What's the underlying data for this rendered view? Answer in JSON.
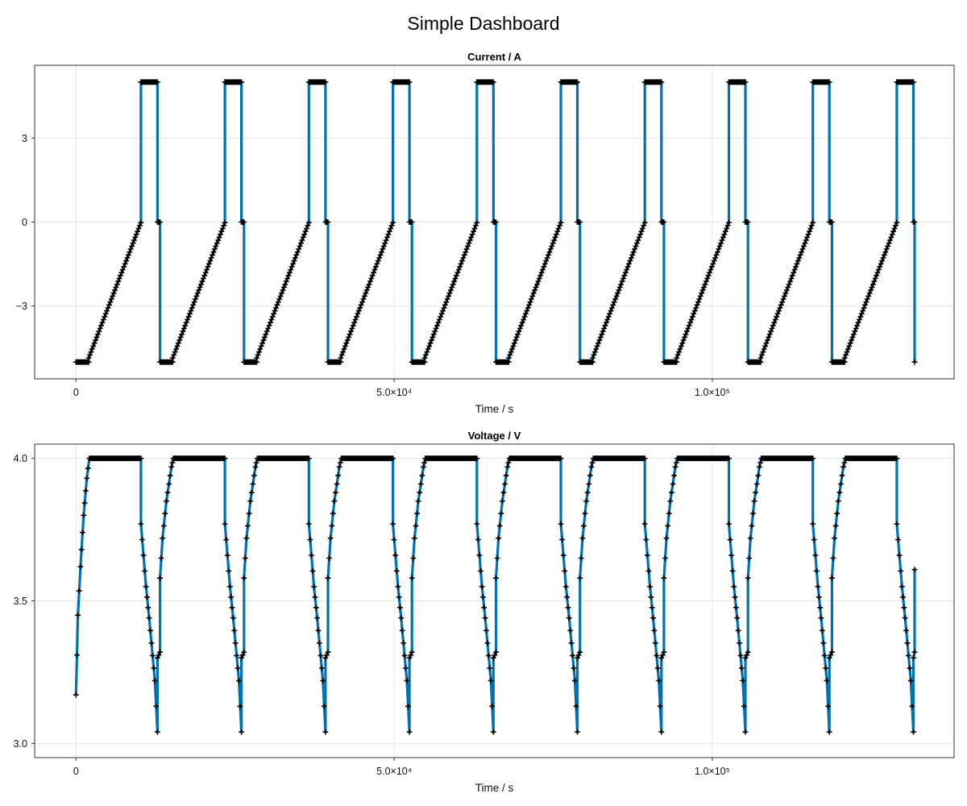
{
  "title": "Simple Dashboard",
  "colors": {
    "line": "#0072b2",
    "marker": "#000000",
    "grid": "#e6e6e6",
    "frame": "#333333"
  },
  "chart_data": [
    {
      "type": "line",
      "title": "Current  /  A",
      "xlabel": "Time  /  s",
      "ylabel": "",
      "xlim": [
        -6500,
        138000
      ],
      "ylim": [
        -5.6,
        5.6
      ],
      "xticks": [
        0,
        50000,
        100000
      ],
      "xtick_labels": [
        "0",
        "5.0×10⁴",
        "1.0×10⁵"
      ],
      "yticks": [
        -3,
        0,
        3
      ],
      "ytick_labels": [
        "−3",
        "0",
        "3"
      ],
      "grid": true,
      "markers": "+",
      "cycle": {
        "count": 10,
        "period": 13200,
        "first_start": 0,
        "end": 131800
      },
      "series": [
        {
          "cycle_x": [
            0,
            2000,
            2000,
            10200,
            10200,
            12800,
            12800,
            13200,
            13200
          ],
          "cycle_y": [
            -5,
            -5,
            -4.85,
            -0.02,
            5,
            5,
            0,
            0,
            -5
          ],
          "final_x": [
            131800,
            131800
          ],
          "final_y": [
            0,
            -5
          ]
        }
      ]
    },
    {
      "type": "line",
      "title": "Voltage  /  V",
      "xlabel": "Time  /  s",
      "ylabel": "",
      "xlim": [
        -6500,
        138000
      ],
      "ylim": [
        2.95,
        4.05
      ],
      "xticks": [
        0,
        50000,
        100000
      ],
      "xtick_labels": [
        "0",
        "5.0×10⁴",
        "1.0×10⁵"
      ],
      "yticks": [
        3.0,
        3.5,
        4.0
      ],
      "ytick_labels": [
        "3.0",
        "3.5",
        "4.0"
      ],
      "grid": true,
      "markers": "+",
      "cycle": {
        "count": 10,
        "period": 13200,
        "first_start": 0,
        "end": 131800
      },
      "series": [
        {
          "first_x": [
            0,
            300,
            700,
            1200,
            1700,
            2100
          ],
          "first_y": [
            3.17,
            3.45,
            3.62,
            3.8,
            3.93,
            4.0
          ],
          "cycle_x": [
            2100,
            10200,
            10200,
            11000,
            11500,
            12400,
            12800,
            12800,
            13200,
            13200,
            13600,
            14200,
            15000,
            15300
          ],
          "cycle_y": [
            4.0,
            4.0,
            3.77,
            3.55,
            3.44,
            3.22,
            3.04,
            3.3,
            3.32,
            3.58,
            3.72,
            3.85,
            3.97,
            4.0
          ],
          "final_x": [
            131800,
            131800
          ],
          "final_y": [
            3.32,
            3.61
          ]
        }
      ]
    }
  ]
}
